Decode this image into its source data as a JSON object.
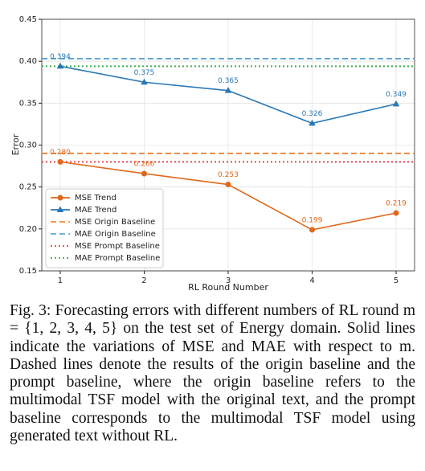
{
  "chart_data": {
    "type": "line",
    "xlabel": "RL Round Number",
    "ylabel": "Error",
    "x": [
      1,
      2,
      3,
      4,
      5
    ],
    "xlim": [
      0.78,
      5.22
    ],
    "ylim": [
      0.15,
      0.45
    ],
    "xticks": [
      1,
      2,
      3,
      4,
      5
    ],
    "yticks": [
      0.15,
      {
        "value": 0.2,
        "label": "0.20"
      },
      0.25,
      {
        "value": 0.3,
        "label": "0.30"
      },
      0.35,
      {
        "value": 0.4,
        "label": "0.40"
      },
      0.45
    ],
    "grid": true,
    "legend": "lower left",
    "series": [
      {
        "name": "MSE Trend",
        "color": "#e0681c",
        "style": "solid",
        "marker": "circle",
        "values": [
          0.28,
          0.266,
          0.253,
          0.199,
          0.219
        ],
        "value_labels": [
          "0.280",
          "0.266",
          "0.253",
          "0.199",
          "0.219"
        ]
      },
      {
        "name": "MAE Trend",
        "color": "#2878b5",
        "style": "solid",
        "marker": "triangle",
        "values": [
          0.394,
          0.375,
          0.365,
          0.326,
          0.349
        ],
        "value_labels": [
          "0.394",
          "0.375",
          "0.365",
          "0.326",
          "0.349"
        ]
      }
    ],
    "hlines": [
      {
        "name": "MSE Origin Baseline",
        "color": "#f08a3c",
        "style": "dashed",
        "value": 0.29
      },
      {
        "name": "MAE Origin Baseline",
        "color": "#5fa8d8",
        "style": "dashed",
        "value": 0.403
      },
      {
        "name": "MSE Prompt Baseline",
        "color": "#e04a52",
        "style": "dotted",
        "value": 0.28
      },
      {
        "name": "MAE Prompt Baseline",
        "color": "#3bb04a",
        "style": "dotted",
        "value": 0.394
      }
    ]
  },
  "caption": "Fig. 3: Forecasting errors with different numbers of RL round m = {1, 2, 3, 4, 5} on the test set of Energy domain. Solid lines indicate the variations of MSE and MAE with respect to m. Dashed lines denote the results of the origin baseline and the prompt baseline, where the origin baseline refers to the multimodal TSF model with the original text, and the prompt baseline corresponds to the multimodal TSF model using generated text without RL."
}
